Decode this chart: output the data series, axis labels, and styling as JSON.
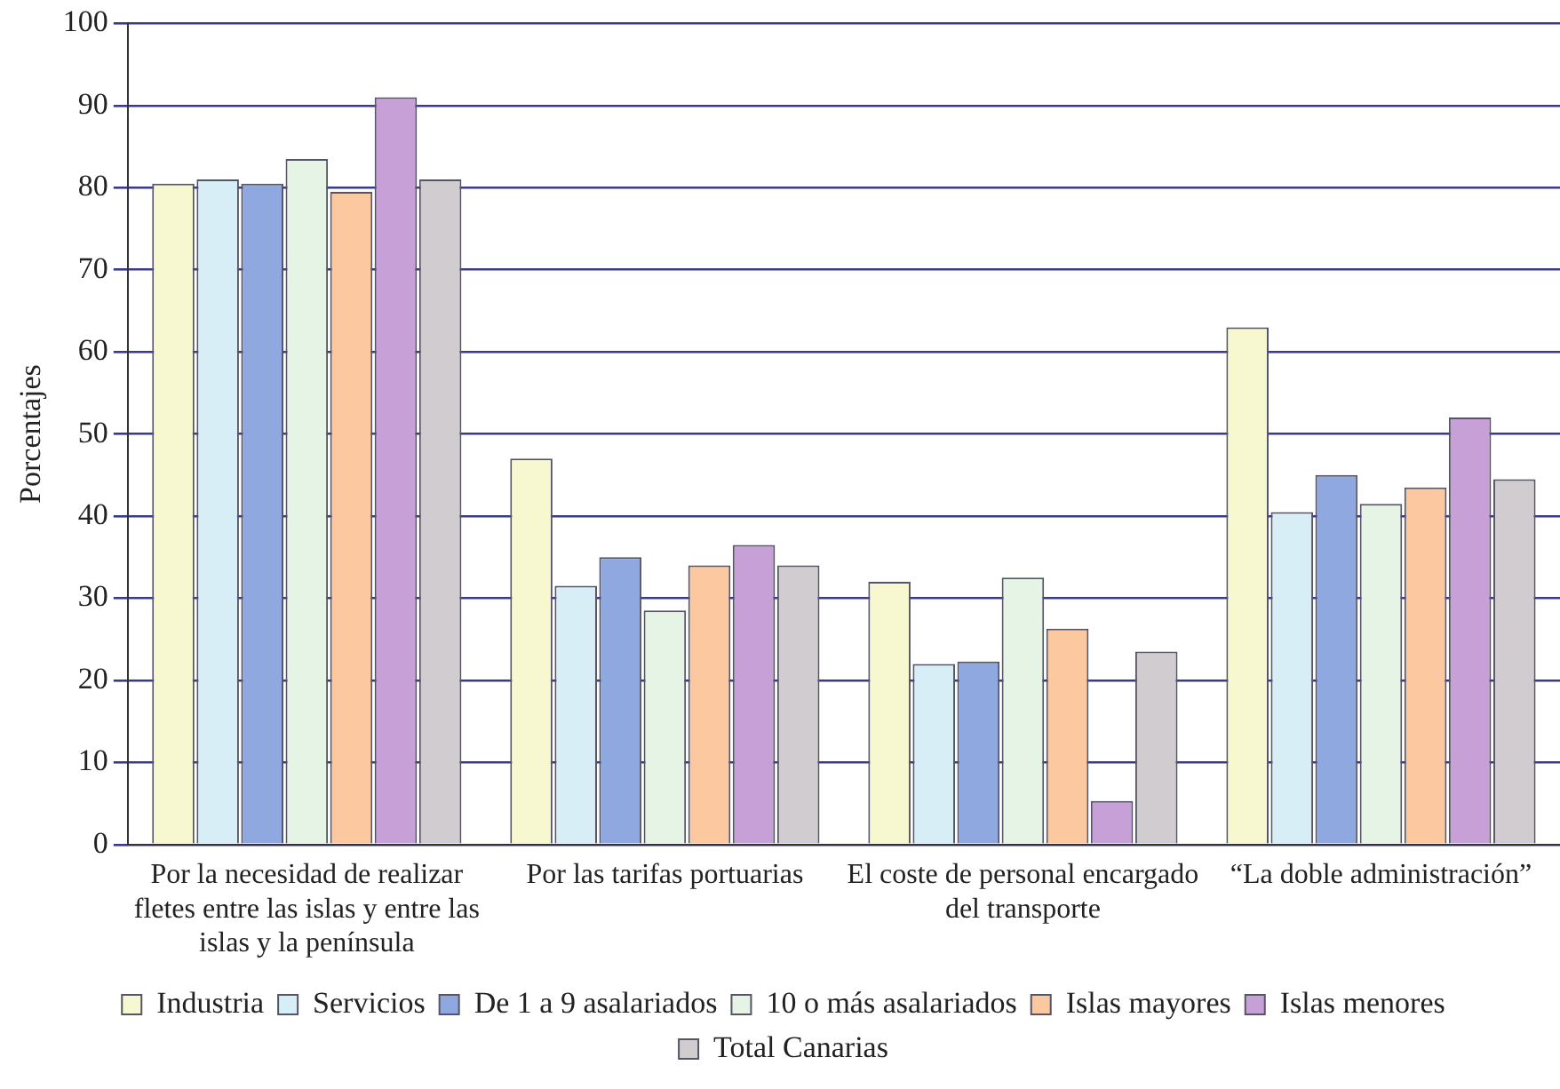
{
  "chart_data": {
    "type": "bar",
    "ylabel": "Porcentajes",
    "categories": [
      "Por la necesidad de realizar fletes entre las islas y entre las islas y la península",
      "Por las tarifas portuarias",
      "El coste de personal encargado del transporte",
      "“La doble administración”"
    ],
    "series": [
      {
        "name": "Industria",
        "color": "#f8f8d0",
        "values": [
          80.5,
          47,
          32,
          63
        ]
      },
      {
        "name": "Servicios",
        "color": "#d8eef6",
        "values": [
          81,
          31.5,
          22,
          40.5
        ]
      },
      {
        "name": "De 1 a 9 asalariados",
        "color": "#8fa8e0",
        "values": [
          80.5,
          35,
          22.3,
          45
        ]
      },
      {
        "name": "10 o más asalariados",
        "color": "#e6f4e6",
        "values": [
          83.5,
          28.5,
          32.5,
          41.5
        ]
      },
      {
        "name": "Islas mayores",
        "color": "#fcc8a0",
        "values": [
          79.5,
          34,
          26.3,
          43.5
        ]
      },
      {
        "name": "Islas menores",
        "color": "#c8a0d8",
        "values": [
          91,
          36.5,
          5.3,
          52
        ]
      },
      {
        "name": "Total Canarias",
        "color": "#d0ccd0",
        "values": [
          81,
          34,
          23.5,
          44.5
        ]
      }
    ],
    "ylim": [
      0,
      100
    ],
    "yticks": [
      0,
      10,
      20,
      30,
      40,
      50,
      60,
      70,
      80,
      90,
      100
    ],
    "grid": "y",
    "legend": "bottom"
  }
}
